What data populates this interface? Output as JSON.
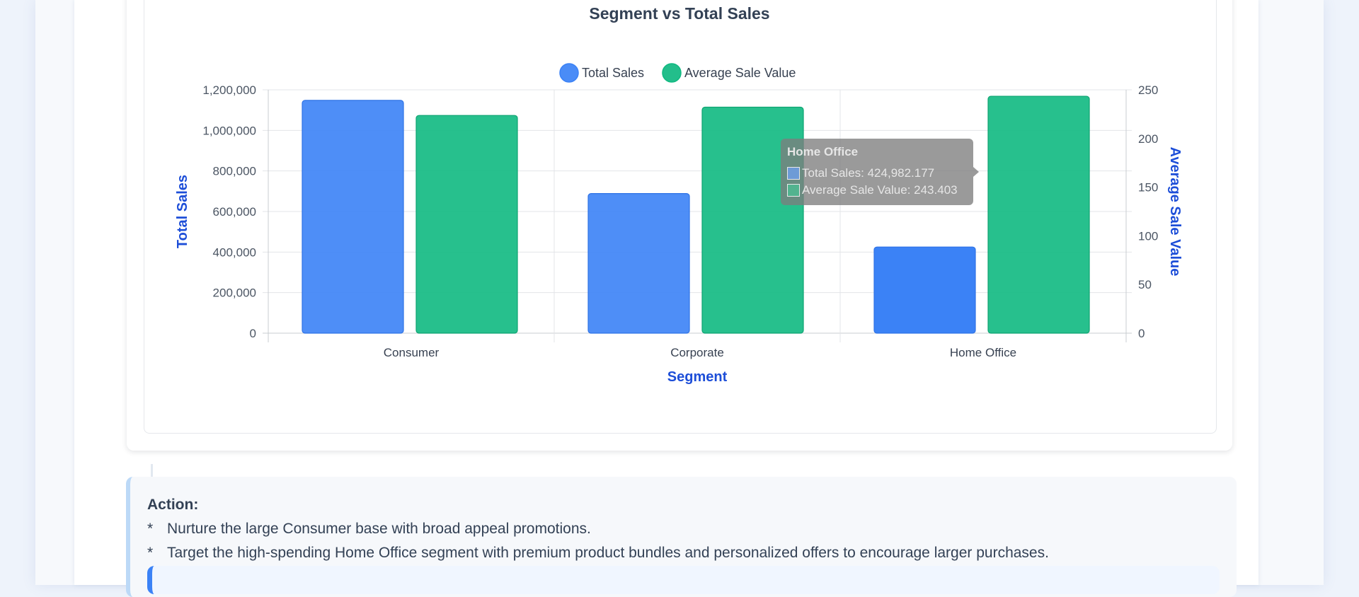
{
  "chart_data": {
    "type": "bar",
    "title": "Segment vs Total Sales",
    "categories": [
      "Consumer",
      "Corporate",
      "Home Office"
    ],
    "series": [
      {
        "name": "Total Sales",
        "axis": "left",
        "color": "#3b82f6",
        "values": [
          1148060.5,
          688494.1,
          424982.177
        ]
      },
      {
        "name": "Average Sale Value",
        "axis": "right",
        "color": "#10b981",
        "values": [
          223.7,
          232.2,
          243.403
        ]
      }
    ],
    "xlabel": "Segment",
    "ylabel": "Total Sales",
    "y2label": "Average Sale Value",
    "ylim": [
      0,
      1200000
    ],
    "y2lim": [
      0,
      250
    ],
    "yticks": [
      "0",
      "200,000",
      "400,000",
      "600,000",
      "800,000",
      "1,000,000",
      "1,200,000"
    ],
    "y2ticks": [
      "0",
      "50",
      "100",
      "150",
      "200",
      "250"
    ],
    "legend_position": "top-center",
    "grid": true,
    "hovered_category": "Home Office"
  },
  "tooltip": {
    "title": "Home Office",
    "rows": [
      "Total Sales: 424,982.177",
      "Average Sale Value: 243.403"
    ]
  },
  "action": {
    "title": "Action:",
    "bullet": "*",
    "items": [
      "Nurture the large Consumer base with broad appeal promotions.",
      "Target the high-spending Home Office segment with premium product bundles and personalized offers to encourage larger purchases."
    ]
  }
}
